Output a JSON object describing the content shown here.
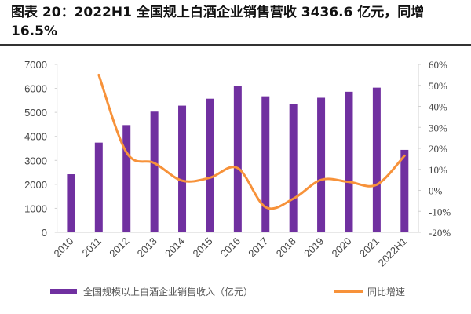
{
  "title": "图表 20：2022H1 全国规上白酒企业销售营收 3436.6 亿元，同增16.5%",
  "chart_data": {
    "type": "bar+line",
    "title": "图表 20：2022H1 全国规上白酒企业销售营收 3436.6 亿元，同增16.5%",
    "categories": [
      "2010",
      "2011",
      "2012",
      "2013",
      "2014",
      "2015",
      "2016",
      "2017",
      "2018",
      "2019",
      "2020",
      "2021",
      "2022H1"
    ],
    "series": [
      {
        "name": "全国规模以上白酒企业销售收入（亿元）",
        "type": "bar",
        "axis": "left",
        "color": "#7030A0",
        "values": [
          2420,
          3740,
          4470,
          5030,
          5280,
          5570,
          6110,
          5670,
          5360,
          5610,
          5860,
          6030,
          3436.6
        ]
      },
      {
        "name": "同比增速",
        "type": "line",
        "axis": "right",
        "color": "#F7923A",
        "values": [
          null,
          55,
          18,
          13,
          4.6,
          6,
          10.6,
          -8,
          -4,
          5,
          4,
          2.7,
          16.5
        ]
      }
    ],
    "y_left": {
      "min": 0,
      "max": 7000,
      "ticks": [
        "0",
        "1000",
        "2000",
        "3000",
        "4000",
        "5000",
        "6000",
        "7000"
      ]
    },
    "y_right": {
      "min": -20,
      "max": 60,
      "ticks": [
        "-20%",
        "-10%",
        "0%",
        "10%",
        "20%",
        "30%",
        "40%",
        "50%",
        "60%"
      ]
    },
    "xlabel": "",
    "ylabel": "",
    "grid": false,
    "legend_position": "bottom"
  },
  "legend": {
    "bar_label": "全国规模以上白酒企业销售收入（亿元）",
    "line_label": "同比增速"
  }
}
